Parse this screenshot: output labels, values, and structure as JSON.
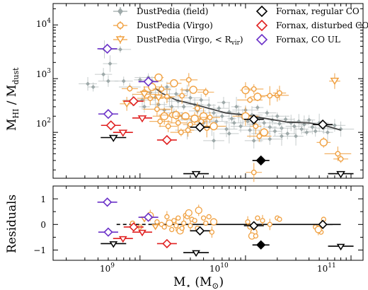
{
  "chart_data": {
    "type": "scatter",
    "x_axis": {
      "label": "M",
      "label_sub": "⋆",
      "label_unit": "(M",
      "label_unit_sub": "⊙",
      "label_unit_close": ")",
      "scale": "log",
      "range": [
        150000000,
        130000000000
      ],
      "tick_labels": [
        {
          "value": 1000000000,
          "base": "10",
          "exp": "9"
        },
        {
          "value": 10000000000,
          "base": "10",
          "exp": "10"
        },
        {
          "value": 100000000000,
          "base": "10",
          "exp": "11"
        }
      ]
    },
    "top_panel": {
      "y_label_main": "M",
      "y_label_sub1": "HI",
      "y_label_mid": " / M",
      "y_label_sub2": "dust",
      "y_scale": "log",
      "y_range": [
        14,
        25000
      ],
      "y_tick_labels": [
        {
          "value": 100,
          "base": "10",
          "exp": "2"
        },
        {
          "value": 1000,
          "base": "10",
          "exp": "3"
        },
        {
          "value": 10000,
          "base": "10",
          "exp": "4"
        }
      ]
    },
    "bottom_panel": {
      "y_label": "Residuals",
      "y_range": [
        -1.4,
        1.5
      ],
      "y_ticks": [
        1,
        0,
        -1
      ],
      "y_tick_labels": [
        "1",
        "0",
        "−1"
      ]
    },
    "legend": {
      "placement": "top",
      "entries": [
        {
          "label": "DustPedia (field)",
          "marker": "diamond",
          "color": "#9ea9a9",
          "filled": true
        },
        {
          "label": "DustPedia (Virgo)",
          "marker": "circle",
          "color": "#f0a040",
          "filled": false
        },
        {
          "label": "DustPedia (Virgo, < R",
          "sub": "vir",
          "close": ")",
          "marker": "triangle-down",
          "color": "#f0a040",
          "filled": false
        },
        {
          "label": "Fornax, regular CO",
          "marker": "diamond",
          "color": "#000000",
          "filled": false
        },
        {
          "label": "Fornax, disturbed CO",
          "marker": "diamond",
          "color": "#e02020",
          "filled": false
        },
        {
          "label": "Fornax, CO UL",
          "marker": "diamond",
          "color": "#6a30c8",
          "filled": false
        }
      ]
    },
    "colors": {
      "field": "#9ea9a9",
      "virgo": "#f0a040",
      "regular": "#000000",
      "disturbed": "#e02020",
      "co_ul": "#6a30c8",
      "trend": "#444444"
    },
    "trend_line": [
      [
        1200000000.0,
        780
      ],
      [
        1350000000.0,
        700
      ],
      [
        1600000000.0,
        540
      ],
      [
        2200000000.0,
        400
      ],
      [
        3500000000.0,
        320
      ],
      [
        6500000000.0,
        230
      ],
      [
        10000000000.0,
        210
      ],
      [
        16000000000.0,
        180
      ],
      [
        25000000000.0,
        155
      ],
      [
        40000000000.0,
        150
      ],
      [
        60000000000.0,
        130
      ],
      [
        80000000000.0,
        110
      ]
    ],
    "series": {
      "dustpedia_field": [
        [
          320000000.0,
          800
        ],
        [
          360000000.0,
          700
        ],
        [
          450000000.0,
          1200
        ],
        [
          460000000.0,
          3500
        ],
        [
          500000000.0,
          900
        ],
        [
          520000000.0,
          1900
        ],
        [
          650000000.0,
          3500
        ],
        [
          700000000.0,
          900
        ],
        [
          800000000.0,
          700
        ],
        [
          850000000.0,
          400
        ],
        [
          1000000000.0,
          950
        ],
        [
          1050000000.0,
          400
        ],
        [
          1100000000.0,
          300
        ],
        [
          1200000000.0,
          1050
        ],
        [
          1250000000.0,
          550
        ],
        [
          1300000000.0,
          900
        ],
        [
          1400000000.0,
          450
        ],
        [
          1500000000.0,
          330
        ],
        [
          1600000000.0,
          620
        ],
        [
          1700000000.0,
          260
        ],
        [
          1800000000.0,
          700
        ],
        [
          1900000000.0,
          440
        ],
        [
          2000000000.0,
          300
        ],
        [
          2100000000.0,
          230
        ],
        [
          2200000000.0,
          520
        ],
        [
          2300000000.0,
          380
        ],
        [
          2500000000.0,
          200
        ],
        [
          2600000000.0,
          300
        ],
        [
          2800000000.0,
          600
        ],
        [
          3000000000.0,
          440
        ],
        [
          3100000000.0,
          170
        ],
        [
          3300000000.0,
          330
        ],
        [
          3500000000.0,
          250
        ],
        [
          3800000000.0,
          400
        ],
        [
          4000000000.0,
          150
        ],
        [
          4200000000.0,
          190
        ],
        [
          4500000000.0,
          320
        ],
        [
          4800000000.0,
          130
        ],
        [
          5000000000.0,
          230
        ],
        [
          5300000000.0,
          160
        ],
        [
          5600000000.0,
          280
        ],
        [
          6000000000.0,
          200
        ],
        [
          6200000000.0,
          360
        ],
        [
          6600000000.0,
          115
        ],
        [
          7000000000.0,
          240
        ],
        [
          7400000000.0,
          180
        ],
        [
          7800000000.0,
          150
        ],
        [
          8200000000.0,
          300
        ],
        [
          8600000000.0,
          220
        ],
        [
          9000000000.0,
          130
        ],
        [
          9400000000.0,
          190
        ],
        [
          10000000000.0,
          260
        ],
        [
          10500000000.0,
          160
        ],
        [
          11000000000.0,
          110
        ],
        [
          11500000000.0,
          210
        ],
        [
          12000000000.0,
          140
        ],
        [
          13000000000.0,
          290
        ],
        [
          13500000000.0,
          180
        ],
        [
          14000000000.0,
          95
        ],
        [
          15000000000.0,
          150
        ],
        [
          16000000000.0,
          230
        ],
        [
          17000000000.0,
          125
        ],
        [
          18000000000.0,
          170
        ],
        [
          19000000000.0,
          105
        ],
        [
          20000000000.0,
          200
        ],
        [
          21000000000.0,
          145
        ],
        [
          22000000000.0,
          120
        ],
        [
          24000000000.0,
          175
        ],
        [
          25000000000.0,
          95
        ],
        [
          27000000000.0,
          150
        ],
        [
          29000000000.0,
          130
        ],
        [
          30000000000.0,
          85
        ],
        [
          32000000000.0,
          160
        ],
        [
          34000000000.0,
          115
        ],
        [
          36000000000.0,
          140
        ],
        [
          38000000000.0,
          100
        ],
        [
          40000000000.0,
          170
        ],
        [
          43000000000.0,
          125
        ],
        [
          46000000000.0,
          105
        ],
        [
          50000000000.0,
          150
        ],
        [
          55000000000.0,
          120
        ],
        [
          60000000000.0,
          100
        ],
        [
          70000000000.0,
          135
        ],
        [
          80000000000.0,
          115
        ],
        [
          22000000000.0,
          85
        ],
        [
          17000000000.0,
          75
        ],
        [
          12000000000.0,
          70
        ],
        [
          2800000000.0,
          110
        ],
        [
          7000000000.0,
          95
        ],
        [
          5000000000.0,
          70
        ]
      ],
      "dustpedia_virgo": [
        [
          1300000000.0,
          700
        ],
        [
          1450000000.0,
          270
        ],
        [
          1550000000.0,
          160
        ],
        [
          1700000000.0,
          200
        ],
        [
          1850000000.0,
          130
        ],
        [
          2000000000.0,
          210
        ],
        [
          2200000000.0,
          210
        ],
        [
          2300000000.0,
          150
        ],
        [
          2450000000.0,
          100
        ],
        [
          2700000000.0,
          200
        ],
        [
          2850000000.0,
          110
        ],
        [
          3000000000.0,
          140
        ],
        [
          3300000000.0,
          180
        ],
        [
          3500000000.0,
          280
        ],
        [
          3800000000.0,
          160
        ],
        [
          4000000000.0,
          200
        ],
        [
          4300000000.0,
          120
        ],
        [
          4600000000.0,
          190
        ],
        [
          5000000000.0,
          130
        ],
        [
          1100000000.0,
          560
        ],
        [
          1250000000.0,
          430
        ],
        [
          1500000000.0,
          1050
        ],
        [
          1600000000.0,
          640
        ],
        [
          1800000000.0,
          460
        ],
        [
          2100000000.0,
          820
        ],
        [
          2500000000.0,
          480
        ],
        [
          2900000000.0,
          950
        ],
        [
          3200000000.0,
          620
        ],
        [
          4200000000.0,
          560
        ],
        [
          800000000.0,
          650
        ],
        [
          10000000000.0,
          610
        ],
        [
          11000000000.0,
          400
        ],
        [
          12000000000.0,
          640
        ],
        [
          13000000000.0,
          460
        ],
        [
          20000000000.0,
          490
        ],
        [
          21000000000.0,
          540
        ],
        [
          10000000000.0,
          200
        ],
        [
          12000000000.0,
          18
        ],
        [
          13500000000.0,
          85
        ],
        [
          15000000000.0,
          100
        ],
        [
          12500000000.0,
          130
        ],
        [
          17000000000.0,
          480
        ],
        [
          55000000000.0,
          65
        ],
        [
          80000000000.0,
          32
        ],
        [
          75000000000.0,
          40
        ]
      ],
      "dustpedia_virgo_rvir": [
        [
          1100000000.0,
          510
        ],
        [
          750000000.0,
          340
        ],
        [
          70000000000.0,
          900
        ],
        [
          1500000000.0,
          440
        ]
      ],
      "fornax_regular_co": [
        [
          3700000000.0,
          125
        ],
        [
          12000000000.0,
          175
        ],
        [
          54000000000.0,
          140
        ]
      ],
      "fornax_regular_co_filled": [
        [
          14000000000.0,
          30
        ]
      ],
      "fornax_disturbed_co": [
        [
          870000000.0,
          380
        ],
        [
          1800000000.0,
          72
        ],
        [
          530000000.0,
          135
        ]
      ],
      "fornax_co_ul": [
        [
          490000000.0,
          3600
        ],
        [
          1200000000.0,
          880
        ],
        [
          500000000.0,
          220
        ]
      ],
      "triangles_black": [
        [
          560000000.0,
          80
        ],
        [
          3400000000.0,
          17
        ],
        [
          80000000000.0,
          17
        ]
      ],
      "triangles_red": [
        [
          690000000.0,
          100
        ],
        [
          1050000000.0,
          185
        ]
      ],
      "residuals": {
        "dustpedia_virgo": [
          [
            1250000000.0,
            0.35
          ],
          [
            1450000000.0,
            0.1
          ],
          [
            1600000000.0,
            0.0
          ],
          [
            1700000000.0,
            -0.1
          ],
          [
            1800000000.0,
            0.3
          ],
          [
            1900000000.0,
            0.05
          ],
          [
            2000000000.0,
            -0.2
          ],
          [
            2100000000.0,
            0.15
          ],
          [
            2200000000.0,
            -0.05
          ],
          [
            2300000000.0,
            0.25
          ],
          [
            2400000000.0,
            -0.25
          ],
          [
            2500000000.0,
            -0.15
          ],
          [
            2600000000.0,
            0.05
          ],
          [
            2700000000.0,
            0.35
          ],
          [
            2800000000.0,
            0.3
          ],
          [
            2900000000.0,
            0.45
          ],
          [
            3000000000.0,
            -0.05
          ],
          [
            3100000000.0,
            0.2
          ],
          [
            3300000000.0,
            0.15
          ],
          [
            3500000000.0,
            -0.15
          ],
          [
            3600000000.0,
            0.55
          ],
          [
            4000000000.0,
            0.25
          ],
          [
            4200000000.0,
            0.05
          ],
          [
            4500000000.0,
            0.3
          ],
          [
            4800000000.0,
            -0.3
          ],
          [
            5000000000.0,
            0.1
          ],
          [
            1000000000.0,
            -0.1
          ],
          [
            850000000.0,
            0.05
          ],
          [
            10500000000.0,
            0.1
          ],
          [
            11000000000.0,
            -0.1
          ],
          [
            12000000000.0,
            -0.3
          ],
          [
            13000000000.0,
            0.25
          ],
          [
            14500000000.0,
            0.15
          ],
          [
            20000000000.0,
            0.25
          ],
          [
            21000000000.0,
            0.2
          ],
          [
            11500000000.0,
            -0.45
          ],
          [
            17000000000.0,
            0.0
          ],
          [
            46000000000.0,
            -0.1
          ],
          [
            55000000000.0,
            0.2
          ],
          [
            52000000000.0,
            -0.3
          ],
          [
            49000000000.0,
            -0.2
          ],
          [
            12500000000.0,
            -0.45
          ]
        ],
        "fornax_regular_co": [
          [
            3700000000.0,
            -0.25
          ],
          [
            12000000000.0,
            -0.05
          ],
          [
            54000000000.0,
            0.0
          ]
        ],
        "fornax_regular_co_filled": [
          [
            14000000000.0,
            -0.8
          ]
        ],
        "fornax_disturbed_co": [
          [
            870000000.0,
            -0.1
          ],
          [
            1800000000.0,
            -0.75
          ]
        ],
        "fornax_co_ul": [
          [
            490000000.0,
            0.87
          ],
          [
            1200000000.0,
            0.28
          ],
          [
            500000000.0,
            -0.3
          ]
        ],
        "triangles_black": [
          [
            560000000.0,
            -0.75
          ],
          [
            3400000000.0,
            -1.1
          ],
          [
            80000000000.0,
            -0.85
          ]
        ],
        "triangles_red": [
          [
            690000000.0,
            -0.55
          ],
          [
            1050000000.0,
            -0.3
          ]
        ],
        "triangles_virgo": [
          [
            1400000000.0,
            -0.1
          ],
          [
            1100000000.0,
            0.2
          ]
        ],
        "zero_line_solid": [
          [
            1200000000.0,
            0
          ],
          [
            80000000000.0,
            0
          ]
        ],
        "zero_line_dashed": [
          [
            600000000.0,
            0
          ],
          [
            1200000000.0,
            0
          ]
        ]
      }
    }
  }
}
